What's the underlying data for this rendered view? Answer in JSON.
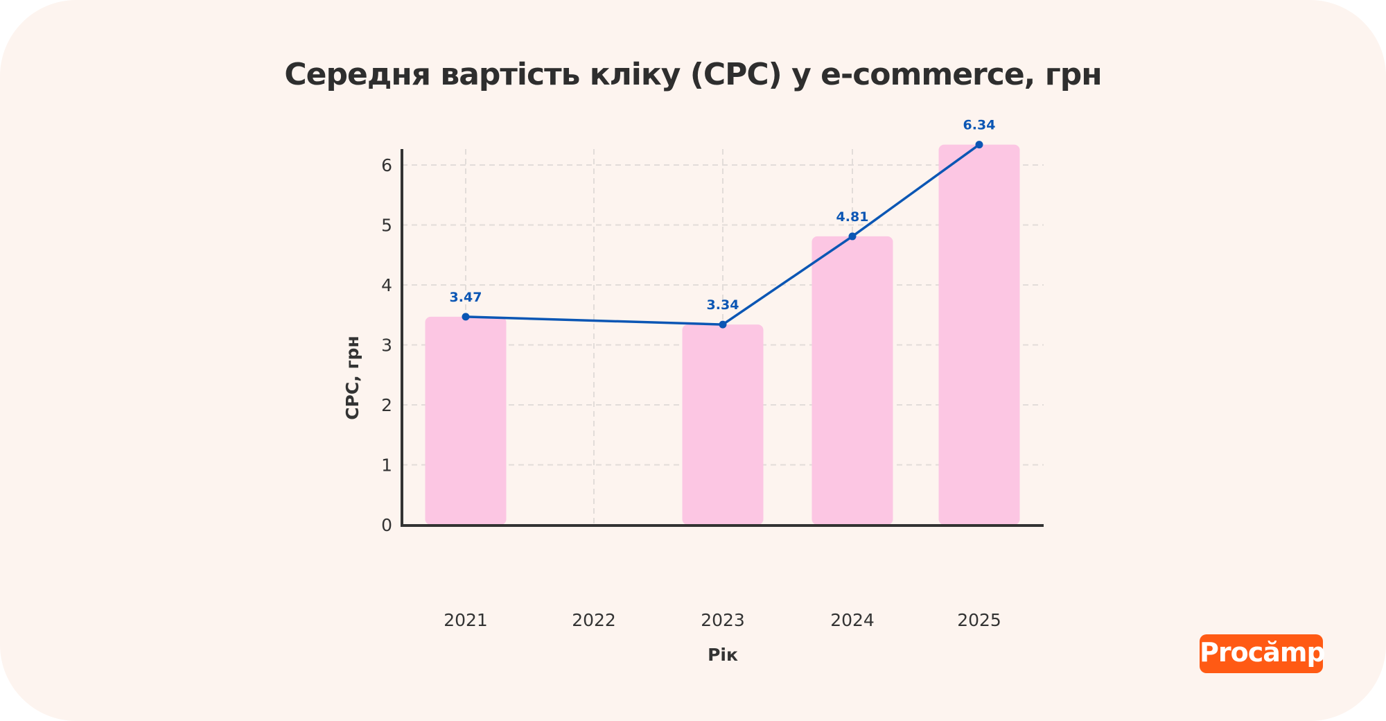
{
  "title": "Середня вартість кліку (CPC) у e-commerce, грн",
  "logo_text": "Procămp",
  "colors": {
    "bar": "#fcc6e3",
    "line": "#0b56b4",
    "background": "#fdf4ef",
    "logo": "#ff5a14"
  },
  "chart_data": {
    "type": "bar+line",
    "title": "Середня вартість кліку (CPC) у e-commerce, грн",
    "xlabel": "Рік",
    "ylabel": "CPC, грн",
    "categories": [
      "2021",
      "2022",
      "2023",
      "2024",
      "2025"
    ],
    "values": [
      3.47,
      null,
      3.34,
      4.81,
      6.34
    ],
    "data_labels": [
      "3.47",
      "",
      "3.34",
      "4.81",
      "6.34"
    ],
    "yticks": [
      "0",
      "1",
      "2",
      "3",
      "4",
      "5",
      "6"
    ],
    "ylim": [
      0,
      6.4
    ],
    "grid": true,
    "legend": "none"
  }
}
